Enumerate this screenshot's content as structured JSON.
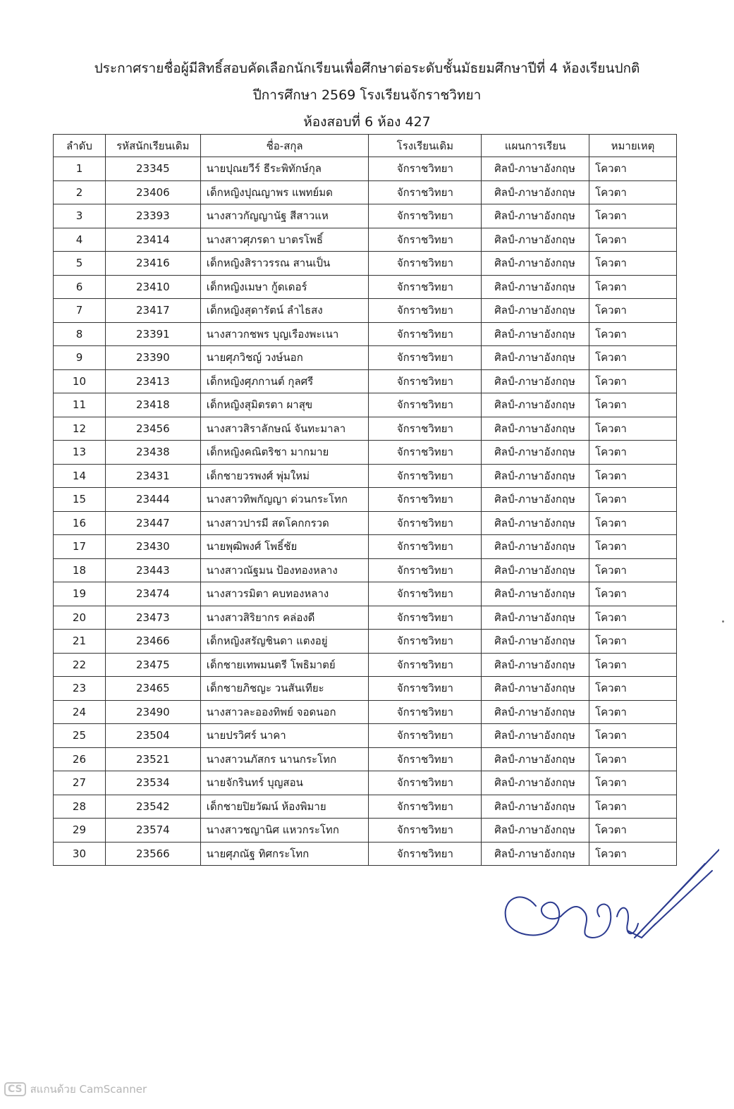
{
  "header": {
    "line1": "ประกาศรายชื่อผู้มีสิทธิ์สอบคัดเลือกนักเรียนเพื่อศึกษาต่อระดับชั้นมัธยมศึกษาปีที่ 4 ห้องเรียนปกติ",
    "line2": "ปีการศึกษา 2569 โรงเรียนจักราชวิทยา",
    "line3": "ห้องสอบที่ 6  ห้อง 427"
  },
  "table": {
    "columns": [
      "ลำดับ",
      "รหัสนักเรียนเดิม",
      "ชื่อ-สกุล",
      "โรงเรียนเดิม",
      "แผนการเรียน",
      "หมายเหตุ"
    ],
    "rows": [
      [
        "1",
        "23345",
        "นายปุณยวีร์ ธีระพิทักษ์กุล",
        "จักราชวิทยา",
        "ศิลป์-ภาษาอังกฤษ",
        "โควตา"
      ],
      [
        "2",
        "23406",
        "เด็กหญิงปุณญาพร แพทย์มด",
        "จักราชวิทยา",
        "ศิลป์-ภาษาอังกฤษ",
        "โควตา"
      ],
      [
        "3",
        "23393",
        "นางสาวกัญญานัฐ สีสาวแห",
        "จักราชวิทยา",
        "ศิลป์-ภาษาอังกฤษ",
        "โควตา"
      ],
      [
        "4",
        "23414",
        "นางสาวศุภรดา บาตรโพธิ์",
        "จักราชวิทยา",
        "ศิลป์-ภาษาอังกฤษ",
        "โควตา"
      ],
      [
        "5",
        "23416",
        "เด็กหญิงสิราวรรณ สานเป็น",
        "จักราชวิทยา",
        "ศิลป์-ภาษาอังกฤษ",
        "โควตา"
      ],
      [
        "6",
        "23410",
        "เด็กหญิงเมษา กู้ดเดอร์",
        "จักราชวิทยา",
        "ศิลป์-ภาษาอังกฤษ",
        "โควตา"
      ],
      [
        "7",
        "23417",
        "เด็กหญิงสุดารัตน์ ลำไธสง",
        "จักราชวิทยา",
        "ศิลป์-ภาษาอังกฤษ",
        "โควตา"
      ],
      [
        "8",
        "23391",
        "นางสาวกชพร บุญเรืองพะเนา",
        "จักราชวิทยา",
        "ศิลป์-ภาษาอังกฤษ",
        "โควตา"
      ],
      [
        "9",
        "23390",
        "นายศุภวิชญ์ วงษ์นอก",
        "จักราชวิทยา",
        "ศิลป์-ภาษาอังกฤษ",
        "โควตา"
      ],
      [
        "10",
        "23413",
        "เด็กหญิงศุภกานต์ กุลศรี",
        "จักราชวิทยา",
        "ศิลป์-ภาษาอังกฤษ",
        "โควตา"
      ],
      [
        "11",
        "23418",
        "เด็กหญิงสุมิตรตา ผาสุข",
        "จักราชวิทยา",
        "ศิลป์-ภาษาอังกฤษ",
        "โควตา"
      ],
      [
        "12",
        "23456",
        "นางสาวสิราลักษณ์ จันทะมาลา",
        "จักราชวิทยา",
        "ศิลป์-ภาษาอังกฤษ",
        "โควตา"
      ],
      [
        "13",
        "23438",
        "เด็กหญิงคณิตริชา มากมาย",
        "จักราชวิทยา",
        "ศิลป์-ภาษาอังกฤษ",
        "โควตา"
      ],
      [
        "14",
        "23431",
        "เด็กชายวรพงศ์ พุ่มใหม่",
        "จักราชวิทยา",
        "ศิลป์-ภาษาอังกฤษ",
        "โควตา"
      ],
      [
        "15",
        "23444",
        "นางสาวทิพกัญญา ด่วนกระโทก",
        "จักราชวิทยา",
        "ศิลป์-ภาษาอังกฤษ",
        "โควตา"
      ],
      [
        "16",
        "23447",
        "นางสาวปารมี สดโคกกรวด",
        "จักราชวิทยา",
        "ศิลป์-ภาษาอังกฤษ",
        "โควตา"
      ],
      [
        "17",
        "23430",
        "นายพุฒิพงศ์ โพธิ์ชัย",
        "จักราชวิทยา",
        "ศิลป์-ภาษาอังกฤษ",
        "โควตา"
      ],
      [
        "18",
        "23443",
        "นางสาวณัฐมน ป้องทองหลาง",
        "จักราชวิทยา",
        "ศิลป์-ภาษาอังกฤษ",
        "โควตา"
      ],
      [
        "19",
        "23474",
        "นางสาวรมิตา คบทองหลาง",
        "จักราชวิทยา",
        "ศิลป์-ภาษาอังกฤษ",
        "โควตา"
      ],
      [
        "20",
        "23473",
        "นางสาวสิริยากร คล่องดี",
        "จักราชวิทยา",
        "ศิลป์-ภาษาอังกฤษ",
        "โควตา"
      ],
      [
        "21",
        "23466",
        "เด็กหญิงสรัญชินดา แตงอยู่",
        "จักราชวิทยา",
        "ศิลป์-ภาษาอังกฤษ",
        "โควตา"
      ],
      [
        "22",
        "23475",
        "เด็กชายเทพมนตรี โพธิมาตย์",
        "จักราชวิทยา",
        "ศิลป์-ภาษาอังกฤษ",
        "โควตา"
      ],
      [
        "23",
        "23465",
        "เด็กชายภิชญะ วนสันเทียะ",
        "จักราชวิทยา",
        "ศิลป์-ภาษาอังกฤษ",
        "โควตา"
      ],
      [
        "24",
        "23490",
        "นางสาวละอองทิพย์ จอดนอก",
        "จักราชวิทยา",
        "ศิลป์-ภาษาอังกฤษ",
        "โควตา"
      ],
      [
        "25",
        "23504",
        "นายปรวิศร์ นาคา",
        "จักราชวิทยา",
        "ศิลป์-ภาษาอังกฤษ",
        "โควตา"
      ],
      [
        "26",
        "23521",
        "นางสาวนภัสกร นานกระโทก",
        "จักราชวิทยา",
        "ศิลป์-ภาษาอังกฤษ",
        "โควตา"
      ],
      [
        "27",
        "23534",
        "นายจักรินทร์ บุญสอน",
        "จักราชวิทยา",
        "ศิลป์-ภาษาอังกฤษ",
        "โควตา"
      ],
      [
        "28",
        "23542",
        "เด็กชายปิยวัฒน์ ห้องพิมาย",
        "จักราชวิทยา",
        "ศิลป์-ภาษาอังกฤษ",
        "โควตา"
      ],
      [
        "29",
        "23574",
        "นางสาวชญานิศ แหวกระโทก",
        "จักราชวิทยา",
        "ศิลป์-ภาษาอังกฤษ",
        "โควตา"
      ],
      [
        "30",
        "23566",
        "นายศุภณัฐ ทิศกระโทก",
        "จักราชวิทยา",
        "ศิลป์-ภาษาอังกฤษ",
        "โควตา"
      ]
    ]
  },
  "signature": {
    "ink_color": "#2b3a8f"
  },
  "watermark": {
    "badge": "CS",
    "text": "สแกนด้วย CamScanner"
  }
}
